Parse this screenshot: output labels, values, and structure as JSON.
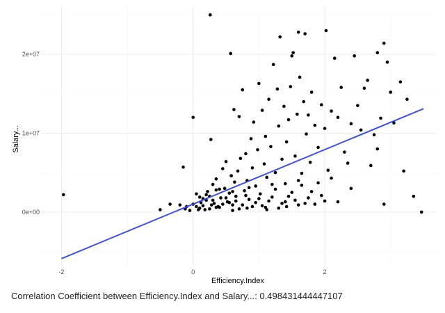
{
  "chart_data": {
    "type": "scatter",
    "xlabel": "Efficiency.Index",
    "ylabel": "Salary...",
    "x_ticks": [
      {
        "value": -2,
        "label": "-2"
      },
      {
        "value": 0,
        "label": "0"
      },
      {
        "value": 2,
        "label": "2"
      }
    ],
    "y_ticks": [
      {
        "value": 0,
        "label": "0e+00"
      },
      {
        "value": 10000000,
        "label": "1e+07"
      },
      {
        "value": 20000000,
        "label": "2e+07"
      }
    ],
    "xlim": [
      -2.3,
      3.7
    ],
    "ylim": [
      -6800000,
      26000000
    ],
    "grid": true,
    "regression_line": {
      "color": "#3d4fe8",
      "points": [
        [
          -2.0,
          -5900000
        ],
        [
          3.5,
          13100000
        ]
      ]
    },
    "point_color": "#000000",
    "series": [
      {
        "points": [
          [
            -1.97,
            2200000
          ],
          [
            0.26,
            25000000
          ],
          [
            0.57,
            20100000
          ],
          [
            0.0,
            12000000
          ],
          [
            0.27,
            9200000
          ],
          [
            -0.15,
            5700000
          ],
          [
            -0.2,
            900000
          ],
          [
            -0.35,
            1000000
          ],
          [
            -0.5,
            300000
          ],
          [
            -0.12,
            400000
          ],
          [
            -0.05,
            200000
          ],
          [
            0.05,
            700000
          ],
          [
            0.1,
            500000
          ],
          [
            0.12,
            1200000
          ],
          [
            0.15,
            800000
          ],
          [
            0.18,
            300000
          ],
          [
            0.2,
            1500000
          ],
          [
            0.22,
            2600000
          ],
          [
            0.25,
            2000000
          ],
          [
            0.28,
            900000
          ],
          [
            0.3,
            3500000
          ],
          [
            0.32,
            1100000
          ],
          [
            0.35,
            4200000
          ],
          [
            0.38,
            700000
          ],
          [
            0.4,
            2900000
          ],
          [
            0.42,
            1800000
          ],
          [
            0.45,
            5500000
          ],
          [
            0.48,
            3000000
          ],
          [
            0.5,
            6400000
          ],
          [
            0.52,
            1300000
          ],
          [
            0.55,
            2400000
          ],
          [
            0.58,
            4600000
          ],
          [
            0.6,
            900000
          ],
          [
            0.62,
            13000000
          ],
          [
            0.63,
            3800000
          ],
          [
            0.65,
            2000000
          ],
          [
            0.68,
            5200000
          ],
          [
            0.7,
            12100000
          ],
          [
            0.72,
            6800000
          ],
          [
            0.75,
            15500000
          ],
          [
            0.78,
            2700000
          ],
          [
            0.8,
            7400000
          ],
          [
            0.82,
            4000000
          ],
          [
            0.85,
            1600000
          ],
          [
            0.88,
            9300000
          ],
          [
            0.9,
            5600000
          ],
          [
            0.92,
            11400000
          ],
          [
            0.95,
            3300000
          ],
          [
            0.98,
            7900000
          ],
          [
            1.0,
            16300000
          ],
          [
            1.02,
            2300000
          ],
          [
            1.05,
            12900000
          ],
          [
            1.08,
            6100000
          ],
          [
            1.1,
            9600000
          ],
          [
            1.12,
            4400000
          ],
          [
            1.15,
            14300000
          ],
          [
            1.18,
            8300000
          ],
          [
            1.2,
            1900000
          ],
          [
            1.22,
            18700000
          ],
          [
            1.25,
            5000000
          ],
          [
            1.28,
            15600000
          ],
          [
            1.3,
            10900000
          ],
          [
            1.32,
            22200000
          ],
          [
            1.35,
            6700000
          ],
          [
            1.38,
            13400000
          ],
          [
            1.4,
            3600000
          ],
          [
            1.42,
            8900000
          ],
          [
            1.45,
            11700000
          ],
          [
            1.48,
            15900000
          ],
          [
            1.5,
            19800000
          ],
          [
            1.52,
            20200000
          ],
          [
            1.55,
            7100000
          ],
          [
            1.58,
            12400000
          ],
          [
            1.6,
            22800000
          ],
          [
            1.62,
            17100000
          ],
          [
            1.65,
            4900000
          ],
          [
            1.68,
            14000000
          ],
          [
            1.7,
            22600000
          ],
          [
            1.72,
            9900000
          ],
          [
            1.75,
            12300000
          ],
          [
            1.78,
            6300000
          ],
          [
            1.8,
            15200000
          ],
          [
            1.85,
            11000000
          ],
          [
            1.9,
            8200000
          ],
          [
            1.95,
            13600000
          ],
          [
            2.0,
            10600000
          ],
          [
            2.02,
            23000000
          ],
          [
            2.05,
            5300000
          ],
          [
            2.1,
            12800000
          ],
          [
            2.15,
            19500000
          ],
          [
            2.2,
            12000000
          ],
          [
            2.25,
            15800000
          ],
          [
            2.3,
            7600000
          ],
          [
            2.35,
            6200000
          ],
          [
            2.4,
            11200000
          ],
          [
            2.45,
            19800000
          ],
          [
            2.5,
            13500000
          ],
          [
            2.55,
            10400000
          ],
          [
            2.6,
            15700000
          ],
          [
            2.65,
            16700000
          ],
          [
            2.7,
            5900000
          ],
          [
            2.75,
            9800000
          ],
          [
            2.8,
            20200000
          ],
          [
            2.85,
            11900000
          ],
          [
            2.9,
            21400000
          ],
          [
            2.95,
            19000000
          ],
          [
            3.0,
            15200000
          ],
          [
            3.05,
            11300000
          ],
          [
            3.15,
            16500000
          ],
          [
            3.25,
            14300000
          ],
          [
            3.35,
            2000000
          ],
          [
            3.47,
            0
          ],
          [
            2.9,
            1000000
          ],
          [
            3.2,
            5200000
          ],
          [
            2.0,
            1400000
          ],
          [
            2.2,
            1300000
          ],
          [
            2.4,
            3000000
          ],
          [
            1.8,
            2600000
          ],
          [
            1.6,
            900000
          ],
          [
            2.8,
            8000000
          ],
          [
            0.05,
            2300000
          ],
          [
            0.15,
            1700000
          ],
          [
            0.35,
            2800000
          ],
          [
            0.45,
            1000000
          ],
          [
            0.6,
            2600000
          ],
          [
            0.75,
            900000
          ],
          [
            0.85,
            3100000
          ],
          [
            0.95,
            1200000
          ],
          [
            1.05,
            800000
          ],
          [
            1.15,
            1400000
          ],
          [
            1.25,
            2900000
          ],
          [
            1.35,
            1100000
          ],
          [
            1.45,
            2000000
          ],
          [
            1.55,
            1500000
          ],
          [
            1.65,
            3400000
          ],
          [
            1.75,
            1800000
          ],
          [
            1.85,
            1000000
          ],
          [
            1.95,
            2100000
          ],
          [
            0.25,
            400000
          ],
          [
            0.4,
            600000
          ],
          [
            0.55,
            1200000
          ],
          [
            0.7,
            400000
          ],
          [
            0.9,
            700000
          ],
          [
            1.0,
            1700000
          ],
          [
            1.1,
            600000
          ],
          [
            1.3,
            500000
          ],
          [
            1.4,
            1300000
          ],
          [
            1.5,
            2500000
          ],
          [
            1.7,
            1100000
          ],
          [
            0.1,
            1900000
          ],
          [
            0.2,
            2200000
          ],
          [
            0.3,
            1500000
          ],
          [
            0.5,
            1800000
          ],
          [
            0.65,
            1400000
          ],
          [
            0.8,
            2100000
          ],
          [
            1.2,
            3500000
          ],
          [
            1.6,
            4000000
          ],
          [
            1.9,
            3700000
          ],
          [
            2.1,
            4300000
          ],
          [
            0.0,
            1000000
          ],
          [
            -0.1,
            700000
          ],
          [
            0.08,
            300000
          ],
          [
            0.35,
            600000
          ],
          [
            0.6,
            200000
          ],
          [
            0.82,
            500000
          ],
          [
            1.12,
            300000
          ],
          [
            1.42,
            700000
          ]
        ]
      }
    ]
  },
  "caption": "Correlation Coefficient between Efficiency.Index and Salary...: 0.498431444447107"
}
